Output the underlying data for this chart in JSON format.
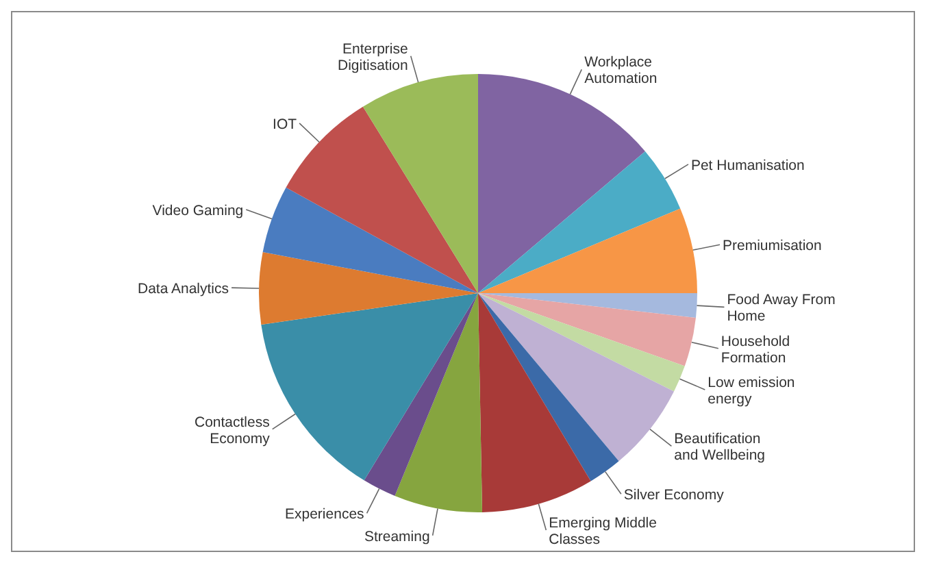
{
  "chart_data": {
    "type": "pie",
    "categories": [
      "Workplace Automation",
      "Pet Humanisation",
      "Premiumisation",
      "Food Away From Home",
      "Household Formation",
      "Low emission energy",
      "Beautification and Wellbeing",
      "Silver Economy",
      "Emerging Middle Classes",
      "Streaming",
      "Experiences",
      "Contactless Economy",
      "Data Analytics",
      "Video Gaming",
      "IOT",
      "Enterprise Digitisation"
    ],
    "values": [
      13.8,
      4.9,
      6.3,
      1.8,
      3.6,
      2.0,
      6.5,
      2.5,
      8.3,
      6.5,
      2.5,
      14.0,
      5.3,
      5.0,
      8.2,
      8.8
    ],
    "colors": [
      "#8064a2",
      "#4bacc6",
      "#f79646",
      "#a5b9de",
      "#e6a5a5",
      "#c3dba3",
      "#bfb1d3",
      "#3b6aa8",
      "#a83a38",
      "#86a53f",
      "#6a4d8c",
      "#3a8ea8",
      "#dd7b30",
      "#4a7cc0",
      "#c0504d",
      "#9bbb59"
    ],
    "legend": false
  }
}
